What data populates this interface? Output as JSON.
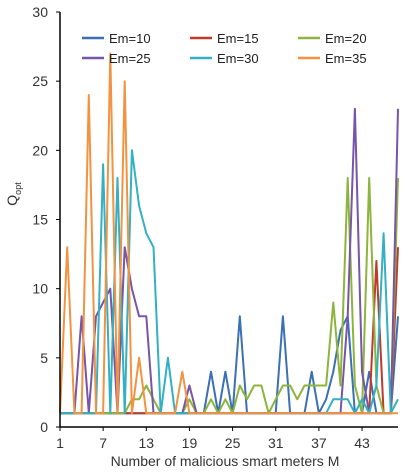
{
  "chart_data": {
    "type": "line",
    "title": "",
    "xlabel": "Number of malicious smart meters M",
    "ylabel_main": "Q",
    "ylabel_sub": "opt",
    "xlim": [
      1,
      48
    ],
    "ylim": [
      0,
      30
    ],
    "x_ticks": [
      1,
      7,
      13,
      19,
      25,
      31,
      37,
      43
    ],
    "y_ticks": [
      0,
      5,
      10,
      15,
      20,
      25,
      30
    ],
    "grid": false,
    "legend_position": "top",
    "x": [
      1,
      2,
      3,
      4,
      5,
      6,
      7,
      8,
      9,
      10,
      11,
      12,
      13,
      14,
      15,
      16,
      17,
      18,
      19,
      20,
      21,
      22,
      23,
      24,
      25,
      26,
      27,
      28,
      29,
      30,
      31,
      32,
      33,
      34,
      35,
      36,
      37,
      38,
      39,
      40,
      41,
      42,
      43,
      44,
      45,
      46,
      47,
      48
    ],
    "series": [
      {
        "name": "Em=10",
        "color": "#3b6fb6",
        "values": [
          1,
          1,
          1,
          1,
          1,
          1,
          1,
          1,
          1,
          1,
          1,
          1,
          1,
          1,
          1,
          1,
          1,
          1,
          1,
          1,
          1,
          4,
          1,
          4,
          1,
          8,
          1,
          1,
          1,
          1,
          1,
          8,
          1,
          1,
          1,
          4,
          1,
          2,
          4,
          7,
          8,
          1,
          1,
          4,
          1,
          1,
          1,
          8
        ]
      },
      {
        "name": "Em=15",
        "color": "#c0392b",
        "values": [
          1,
          1,
          1,
          1,
          1,
          1,
          1,
          1,
          1,
          1,
          1,
          1,
          1,
          1,
          1,
          1,
          1,
          1,
          1,
          1,
          1,
          1,
          1,
          1,
          1,
          1,
          1,
          1,
          1,
          1,
          1,
          1,
          1,
          1,
          1,
          1,
          1,
          1,
          1,
          1,
          1,
          1,
          1,
          1,
          12,
          1,
          1,
          13
        ]
      },
      {
        "name": "Em=20",
        "color": "#8db43c",
        "values": [
          1,
          1,
          1,
          1,
          1,
          1,
          1,
          1,
          1,
          1,
          2,
          2,
          3,
          2,
          1,
          1,
          1,
          1,
          2,
          1,
          1,
          2,
          1,
          2,
          1,
          3,
          2,
          3,
          3,
          1,
          2,
          3,
          3,
          2,
          3,
          3,
          3,
          3,
          9,
          3,
          18,
          3,
          1,
          18,
          3,
          1,
          1,
          18
        ]
      },
      {
        "name": "Em=25",
        "color": "#7755a8",
        "values": [
          1,
          1,
          1,
          8,
          1,
          8,
          9,
          10,
          1,
          13,
          10,
          8,
          8,
          1,
          1,
          1,
          1,
          1,
          3,
          1,
          1,
          1,
          1,
          1,
          1,
          1,
          1,
          1,
          1,
          1,
          1,
          1,
          1,
          1,
          1,
          1,
          1,
          1,
          1,
          1,
          8,
          23,
          4,
          1,
          1,
          1,
          1,
          23
        ]
      },
      {
        "name": "Em=30",
        "color": "#33b0c4",
        "values": [
          1,
          1,
          1,
          1,
          1,
          1,
          19,
          1,
          18,
          1,
          20,
          16,
          14,
          13,
          1,
          5,
          1,
          1,
          1,
          1,
          1,
          1,
          1,
          1,
          1,
          1,
          1,
          1,
          1,
          1,
          1,
          1,
          1,
          1,
          1,
          1,
          1,
          1,
          2,
          2,
          2,
          1,
          2,
          1,
          3,
          14,
          1,
          2
        ]
      },
      {
        "name": "Em=35",
        "color": "#f39240",
        "values": [
          1,
          13,
          1,
          1,
          24,
          1,
          1,
          27,
          1,
          25,
          1,
          5,
          1,
          1,
          1,
          1,
          1,
          4,
          1,
          1,
          1,
          1,
          1,
          1,
          1,
          1,
          1,
          1,
          1,
          1,
          1,
          1,
          1,
          1,
          1,
          1,
          1,
          1,
          1,
          1,
          1,
          1,
          1,
          1,
          1,
          1,
          1,
          1
        ]
      }
    ]
  }
}
